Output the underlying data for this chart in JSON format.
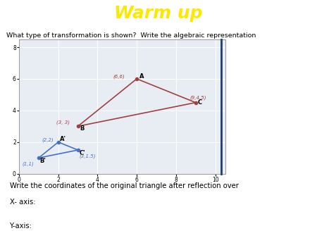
{
  "title": "Warm up",
  "title_color": "#FFE800",
  "title_bg_color": "#6FA8C8",
  "question_text": "What type of transformation is shown?  Write the algebraic representation",
  "bottom_text1": "Write the coordinates of the original triangle after reflection over",
  "bottom_text2": "X- axis:",
  "bottom_text3": "Y-axis:",
  "triangle_original": {
    "A": [
      6,
      6
    ],
    "B": [
      3,
      3
    ],
    "C": [
      9,
      4.5
    ],
    "color": "#A04040",
    "label_color": "#A04040"
  },
  "triangle_image": {
    "A_prime": [
      2,
      2
    ],
    "B_prime": [
      1,
      1
    ],
    "C_prime": [
      3,
      1.5
    ],
    "color": "#4472C4",
    "label_color": "#4472C4"
  },
  "grid_bg": "#E8EDF4",
  "xlim": [
    0,
    10.5
  ],
  "ylim": [
    0,
    8.5
  ],
  "xticks": [
    0,
    2,
    4,
    6,
    8,
    10
  ],
  "yticks": [
    0,
    2,
    4,
    6,
    8
  ],
  "vertical_line_x": 10.3,
  "vertical_line_color": "#1F3A7A",
  "fig_width": 4.5,
  "fig_height": 3.38,
  "fig_dpi": 100
}
